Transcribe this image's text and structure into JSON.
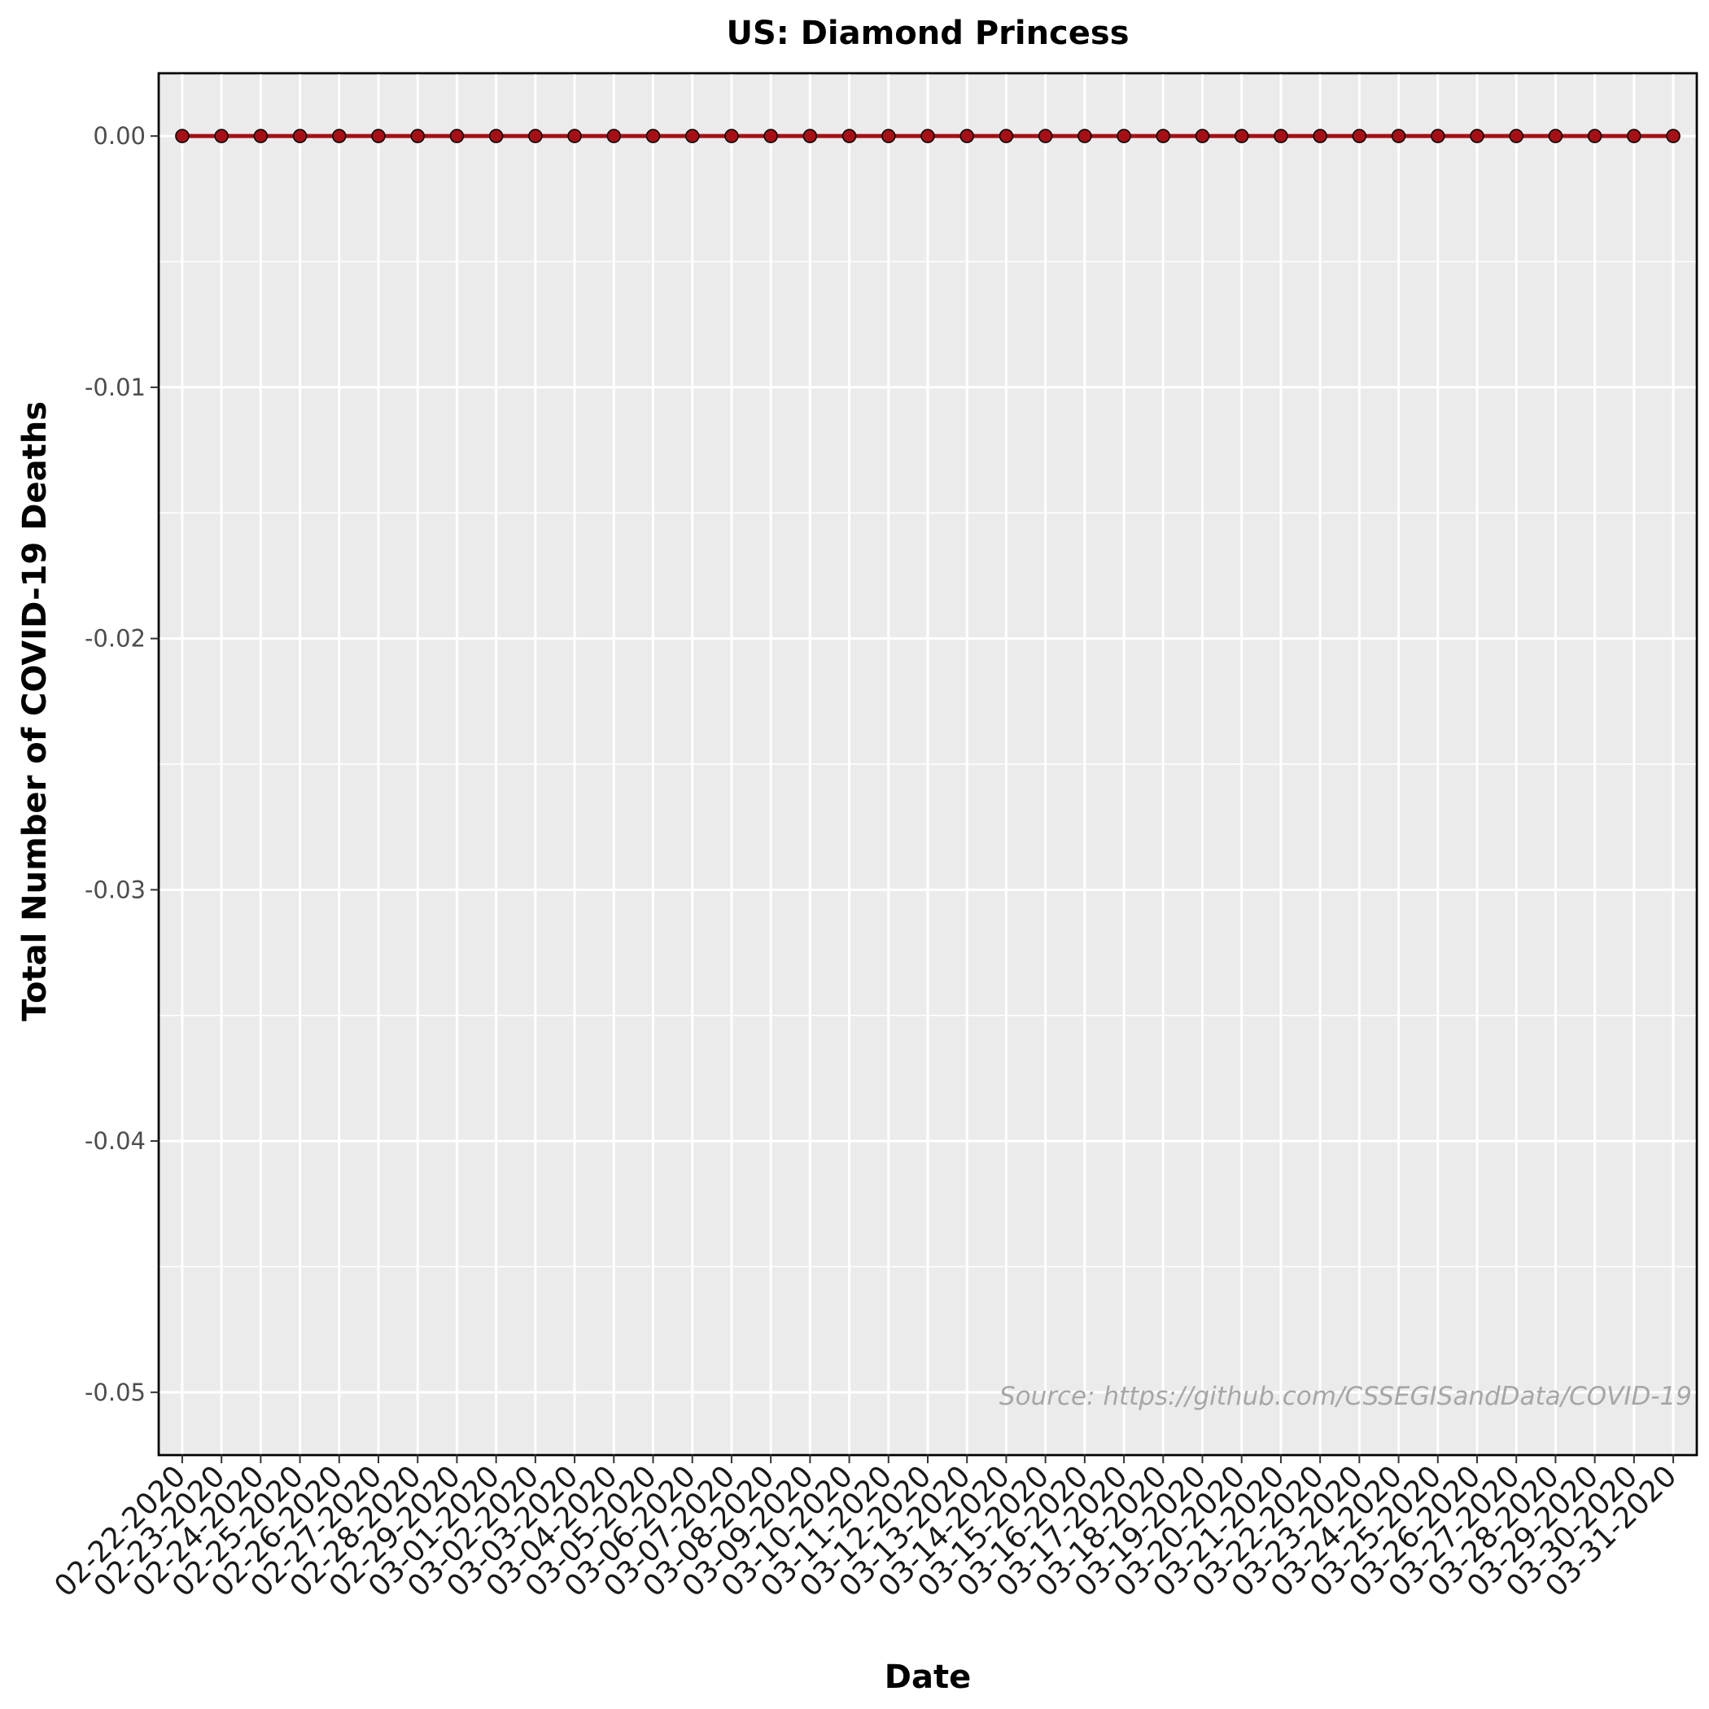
{
  "chart_data": {
    "type": "line",
    "title": "US: Diamond Princess",
    "xlabel": "Date",
    "ylabel": "Total Number of COVID-19 Deaths",
    "caption": "Source: https://github.com/CSSEGISandData/COVID-19",
    "ylim": [
      -0.0525,
      0.0025
    ],
    "y_ticks": [
      0.0,
      -0.01,
      -0.02,
      -0.03,
      -0.04,
      -0.05
    ],
    "y_tick_labels": [
      "0.00",
      "-0.01",
      "-0.02",
      "-0.03",
      "-0.04",
      "-0.05"
    ],
    "grid": true,
    "x": [
      "02-22-2020",
      "02-23-2020",
      "02-24-2020",
      "02-25-2020",
      "02-26-2020",
      "02-27-2020",
      "02-28-2020",
      "02-29-2020",
      "03-01-2020",
      "03-02-2020",
      "03-03-2020",
      "03-04-2020",
      "03-05-2020",
      "03-06-2020",
      "03-07-2020",
      "03-08-2020",
      "03-09-2020",
      "03-10-2020",
      "03-11-2020",
      "03-12-2020",
      "03-13-2020",
      "03-14-2020",
      "03-15-2020",
      "03-16-2020",
      "03-17-2020",
      "03-18-2020",
      "03-19-2020",
      "03-20-2020",
      "03-21-2020",
      "03-22-2020",
      "03-23-2020",
      "03-24-2020",
      "03-25-2020",
      "03-26-2020",
      "03-27-2020",
      "03-28-2020",
      "03-29-2020",
      "03-30-2020",
      "03-31-2020"
    ],
    "series": [
      {
        "values": [
          0,
          0,
          0,
          0,
          0,
          0,
          0,
          0,
          0,
          0,
          0,
          0,
          0,
          0,
          0,
          0,
          0,
          0,
          0,
          0,
          0,
          0,
          0,
          0,
          0,
          0,
          0,
          0,
          0,
          0,
          0,
          0,
          0,
          0,
          0,
          0,
          0,
          0,
          0
        ],
        "color": "#a50f15"
      }
    ],
    "panel_background": "#ebebeb"
  }
}
